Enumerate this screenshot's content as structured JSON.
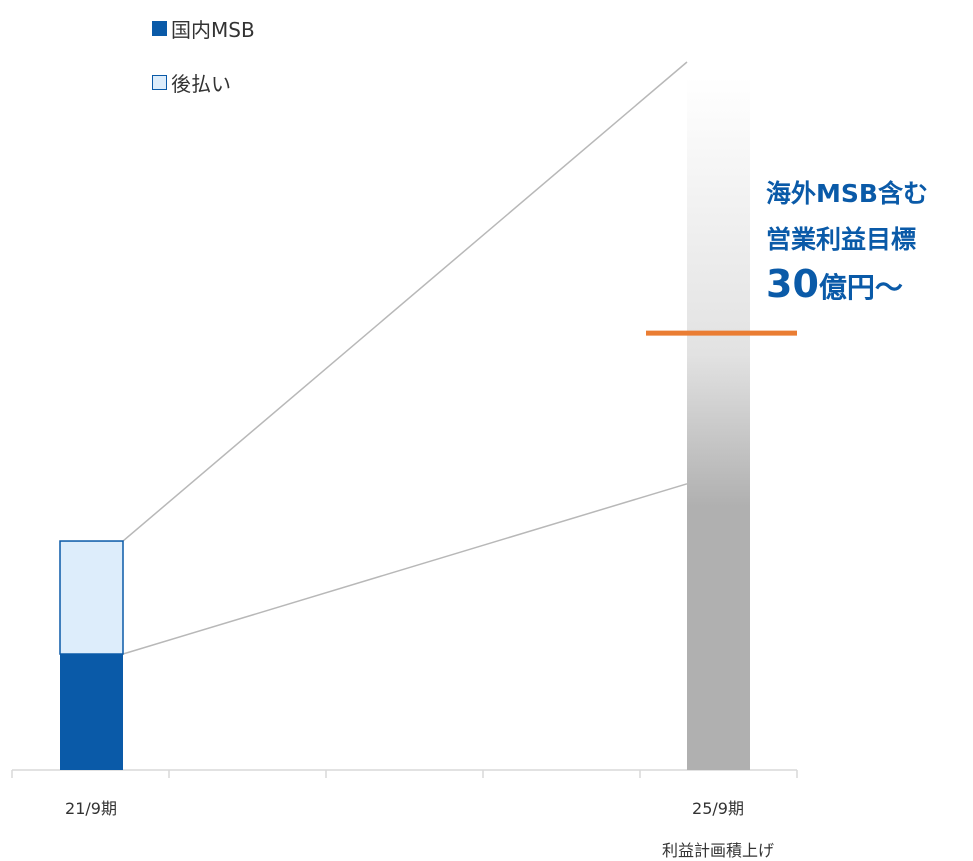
{
  "chart_data": {
    "type": "bar",
    "stacked": true,
    "categories": [
      "21/9期",
      "25/9期"
    ],
    "category_sublabels": [
      "",
      "利益計画積上げ"
    ],
    "series": [
      {
        "name": "国内MSB",
        "values": [
          7.7,
          null
        ],
        "color": "#0a5aa8"
      },
      {
        "name": "後払い",
        "values": [
          7.5,
          null
        ],
        "color": "#ddedfb"
      }
    ],
    "target_bar": {
      "category": "25/9期",
      "value": 46,
      "style": "gradient",
      "color": "#b0b0b0"
    },
    "target_line": {
      "value": 29,
      "color": "#ea7d33"
    },
    "connector_ends": [
      19,
      47
    ],
    "ylim": [
      0,
      47
    ],
    "legend": "top-left",
    "grid": false,
    "annotation": {
      "line1": "海外MSB含む",
      "line2": "営業利益目標",
      "value": "30",
      "unit": "億円～"
    }
  }
}
